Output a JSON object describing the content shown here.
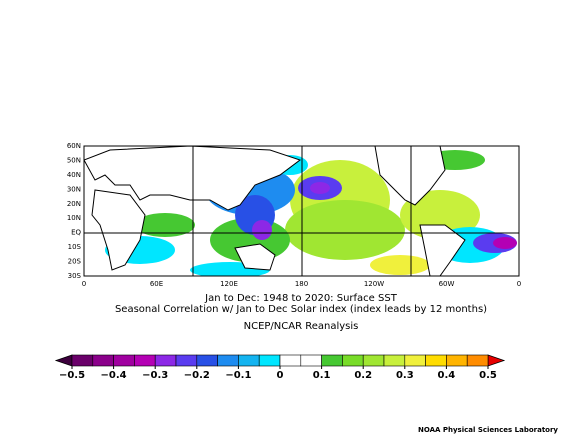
{
  "map": {
    "title": "Jan to Dec: 1948 to 2020: Surface SST",
    "subtitle": "Seasonal Correlation w/ Jan to Dec Solar index (index leads by 12 months)",
    "source": "NCEP/NCAR Reanalysis",
    "credit": "NOAA Physical Sciences Laboratory",
    "lat_labels": [
      "60N",
      "50N",
      "40N",
      "30N",
      "20N",
      "10N",
      "EQ",
      "10S",
      "20S",
      "30S"
    ],
    "lon_labels": [
      "0",
      "60E",
      "120E",
      "180",
      "120W",
      "60W",
      "0"
    ],
    "colorbar": {
      "clim": [
        -0.5,
        0.5
      ],
      "ticks": [
        {
          "value": -0.5,
          "label": "−0.5"
        },
        {
          "value": -0.4,
          "label": "−0.4"
        },
        {
          "value": -0.3,
          "label": "−0.3"
        },
        {
          "value": -0.2,
          "label": "−0.2"
        },
        {
          "value": -0.1,
          "label": "−0.1"
        },
        0,
        0.1,
        0.2,
        0.3,
        0.4,
        0.5
      ],
      "colors": [
        "#6a006a",
        "#8b008b",
        "#a000a0",
        "#b400b4",
        "#8c28e6",
        "#5a3cf0",
        "#2850e6",
        "#1e8cf0",
        "#14b4f0",
        "#00e6ff",
        "#ffffff",
        "#ffffff",
        "#46c832",
        "#78dc28",
        "#a0e632",
        "#c8f03c",
        "#f0f03c",
        "#ffdc00",
        "#ffb400",
        "#ff8c00"
      ],
      "under_color": "#3c003c",
      "over_color": "#e60000"
    }
  }
}
